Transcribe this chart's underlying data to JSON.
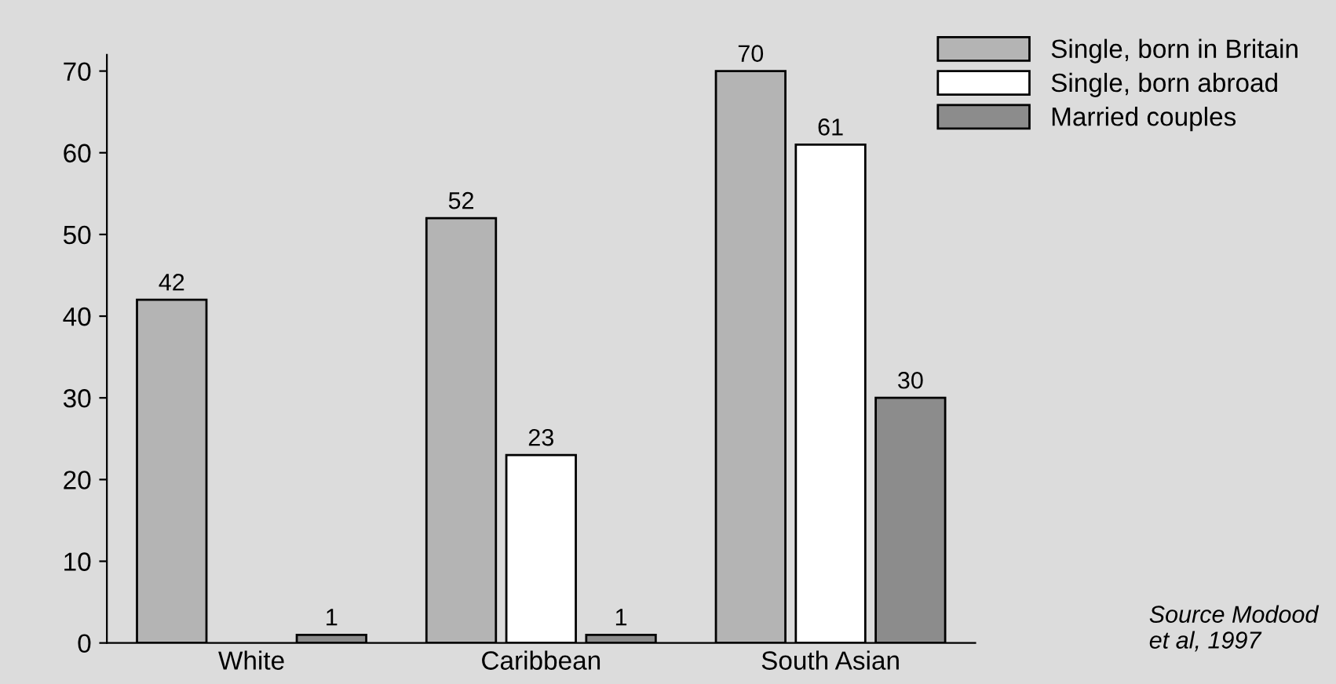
{
  "chart_data": {
    "type": "bar",
    "categories": [
      "White",
      "Caribbean",
      "South Asian"
    ],
    "series": [
      {
        "name": "Single, born in Britain",
        "color": "#b4b4b4",
        "values": [
          42,
          52,
          70
        ]
      },
      {
        "name": "Single, born abroad",
        "color": "#ffffff",
        "values": [
          null,
          23,
          61
        ]
      },
      {
        "name": "Married couples",
        "color": "#8c8c8c",
        "values": [
          1,
          1,
          30
        ]
      }
    ],
    "ylim": [
      0,
      72
    ],
    "yticks": [
      0,
      10,
      20,
      30,
      40,
      50,
      60,
      70
    ],
    "data_labels": true,
    "grid": false,
    "legend": "top right",
    "annotations": [
      "Source Modood et al, 1997"
    ]
  }
}
